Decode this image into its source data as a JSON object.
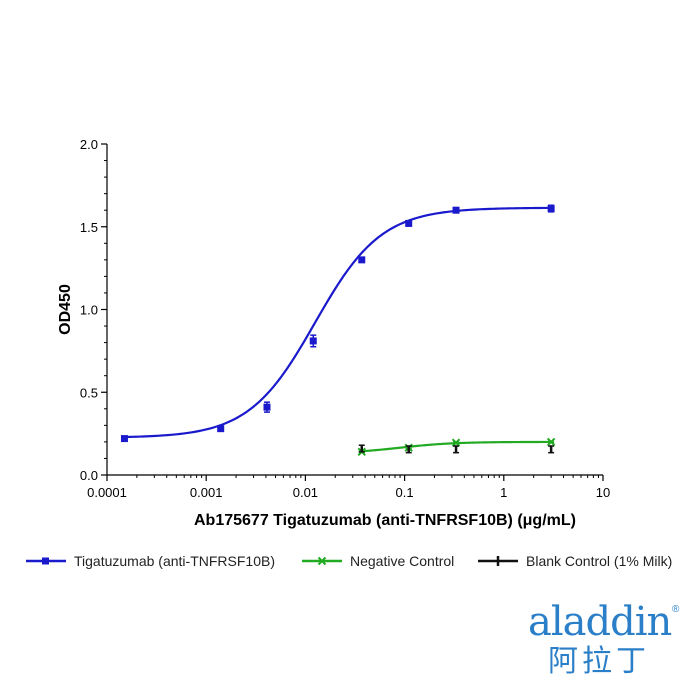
{
  "chart_data": {
    "type": "line",
    "title": "",
    "xlabel": "Ab175677 Tigatuzumab (anti-TNFRSF10B) (μg/mL)",
    "ylabel": "OD450",
    "xscale": "log",
    "xlim": [
      0.0001,
      10
    ],
    "ylim": [
      0,
      2.0
    ],
    "xticks": [
      0.0001,
      0.001,
      0.01,
      0.1,
      1,
      10
    ],
    "xtick_labels": [
      "0.0001",
      "0.001",
      "0.01",
      "0.1",
      "1",
      "10"
    ],
    "yticks": [
      0,
      0.5,
      1.0,
      1.5,
      2.0
    ],
    "ytick_labels": [
      "0.0",
      "0.5",
      "1.0",
      "1.5",
      "2.0"
    ],
    "legend_position": "bottom",
    "series": [
      {
        "name": "Tigatuzumab (anti-TNFRSF10B)",
        "color": "#1a1acc",
        "marker": "square",
        "x": [
          0.00015,
          0.0014,
          0.0041,
          0.012,
          0.037,
          0.11,
          0.33,
          3.0
        ],
        "y": [
          0.22,
          0.28,
          0.41,
          0.81,
          1.3,
          1.52,
          1.6,
          1.61
        ],
        "err": [
          0.005,
          0.005,
          0.03,
          0.035,
          0.01,
          0.01,
          0.005,
          0.02
        ],
        "fit_curve": {
          "bottom": 0.225,
          "top": 1.615,
          "ec50": 0.0125,
          "hill": 1.3
        }
      },
      {
        "name": "Negative Control",
        "color": "#22aa22",
        "marker": "x",
        "x": [
          0.037,
          0.11,
          0.33,
          3.0
        ],
        "y": [
          0.14,
          0.165,
          0.195,
          0.2
        ],
        "err": [
          0.005,
          0.005,
          0.005,
          0.005
        ],
        "fit_curve": {
          "bottom": 0.13,
          "top": 0.2,
          "ec50": 0.09,
          "hill": 1.6
        }
      },
      {
        "name": "Blank Control (1% Milk)",
        "color": "#111111",
        "marker": "tick",
        "x": [
          0.037,
          0.11,
          0.33,
          3.0
        ],
        "y": [
          0.16,
          0.155,
          0.155,
          0.155
        ],
        "err": [
          0.02,
          0.02,
          0.02,
          0.02
        ],
        "connect": false
      }
    ]
  },
  "logo": {
    "text": "aladdin",
    "text_cn": "阿拉丁",
    "reg": "®"
  }
}
